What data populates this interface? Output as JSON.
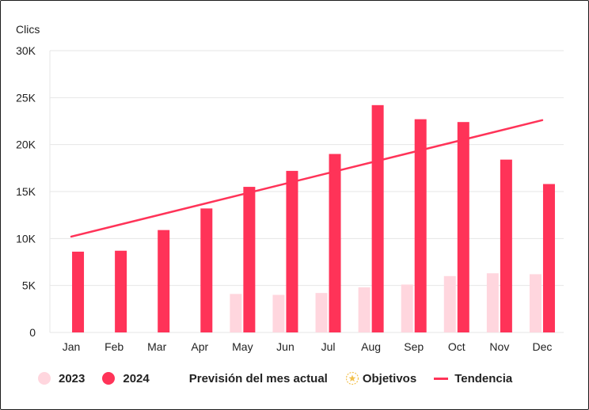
{
  "chart_data": {
    "type": "bar",
    "ylabel": "Clics",
    "ylim": [
      0,
      30000
    ],
    "yticks": [
      0,
      5000,
      10000,
      15000,
      20000,
      25000,
      30000
    ],
    "ytick_labels": [
      "0",
      "5K",
      "10K",
      "15K",
      "20K",
      "25K",
      "30K"
    ],
    "categories": [
      "Jan",
      "Feb",
      "Mar",
      "Apr",
      "May",
      "Jun",
      "Jul",
      "Aug",
      "Sep",
      "Oct",
      "Nov",
      "Dec"
    ],
    "series": [
      {
        "name": "2023",
        "color": "#ffd6de",
        "values": [
          null,
          null,
          null,
          null,
          4100,
          4000,
          4200,
          4800,
          5100,
          6000,
          6300,
          6200
        ]
      },
      {
        "name": "2024",
        "color": "#ff3358",
        "values": [
          8600,
          8700,
          10900,
          13200,
          15500,
          17200,
          19000,
          24200,
          22700,
          22400,
          18400,
          15800
        ]
      }
    ],
    "trend": {
      "name": "Tendencia",
      "color": "#ff3358",
      "start": 10200,
      "end": 22600
    },
    "grid": true,
    "legend_position": "bottom"
  },
  "legend": {
    "items": [
      {
        "label": "2023",
        "color": "#ffd6de"
      },
      {
        "label": "2024",
        "color": "#ff3358"
      }
    ],
    "forecast_label": "Previsión del mes actual",
    "objectives_label": "Objetivos",
    "trend_label": "Tendencia"
  }
}
